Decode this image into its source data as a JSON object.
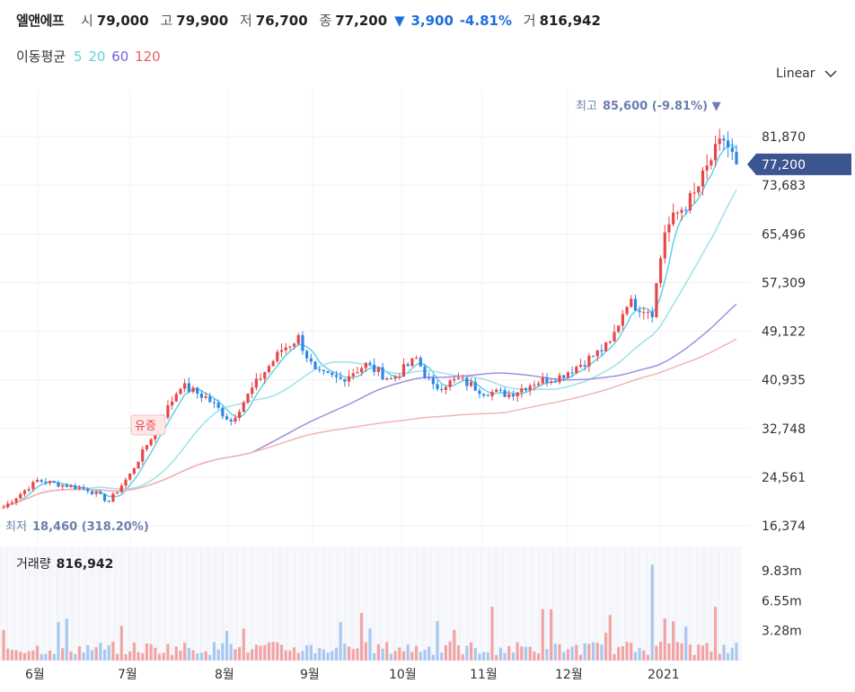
{
  "header": {
    "name": "엘앤에프",
    "open_label": "시",
    "open": "79,000",
    "high_label": "고",
    "high": "79,900",
    "low_label": "저",
    "low": "76,700",
    "close_label": "종",
    "close": "77,200",
    "change_arrow": "▼",
    "change": "3,900",
    "change_pct": "-4.81%",
    "volume_label": "거",
    "volume": "816,942"
  },
  "moving_average": {
    "label": "이동평균",
    "periods": [
      {
        "text": "5",
        "color": "#5fd3e3"
      },
      {
        "text": "20",
        "color": "#5fd3e3"
      },
      {
        "text": "60",
        "color": "#7a5fd0"
      },
      {
        "text": "120",
        "color": "#f05a5a"
      }
    ]
  },
  "scale_selector": {
    "label": "Linear",
    "icon": "chevron-down-icon"
  },
  "colors": {
    "up": "#e8464a",
    "down": "#2f86e6",
    "ma5": "#5fd3e3",
    "ma20": "#9fe0ec",
    "ma60": "#a28fe0",
    "ma120": "#f6b3b3",
    "price_tag": "#3c5591",
    "annotation": "#6b7fb0"
  },
  "chart_data": {
    "type": "candlestick",
    "y_ticks": [
      "81,870",
      "73,683",
      "65,496",
      "57,309",
      "49,122",
      "40,935",
      "32,748",
      "24,561",
      "16,374"
    ],
    "y_range": [
      16374,
      85600
    ],
    "x_ticks": [
      "6월",
      "7월",
      "8월",
      "9월",
      "10월",
      "11월",
      "12월",
      "2021"
    ],
    "current_price": "77,200",
    "max_annotation": {
      "label": "최고",
      "value": "85,600 (-9.81%)",
      "arrow": "▼"
    },
    "min_annotation": {
      "label": "최저",
      "value": "18,460 (318.20%)"
    },
    "event_marker": "유증",
    "monthly_closes": [
      {
        "month": "6월",
        "close": 22500
      },
      {
        "month": "7월",
        "close": 37000
      },
      {
        "month": "8월",
        "close": 45000
      },
      {
        "month": "9월",
        "close": 41500
      },
      {
        "month": "10월",
        "close": 39000
      },
      {
        "month": "11월",
        "close": 41000
      },
      {
        "month": "12월",
        "close": 53000
      },
      {
        "month": "2021",
        "close": 77200
      }
    ],
    "volume": {
      "label": "거래량",
      "value": "816,942",
      "y_ticks": [
        "9.83m",
        "6.55m",
        "3.28m"
      ]
    }
  }
}
